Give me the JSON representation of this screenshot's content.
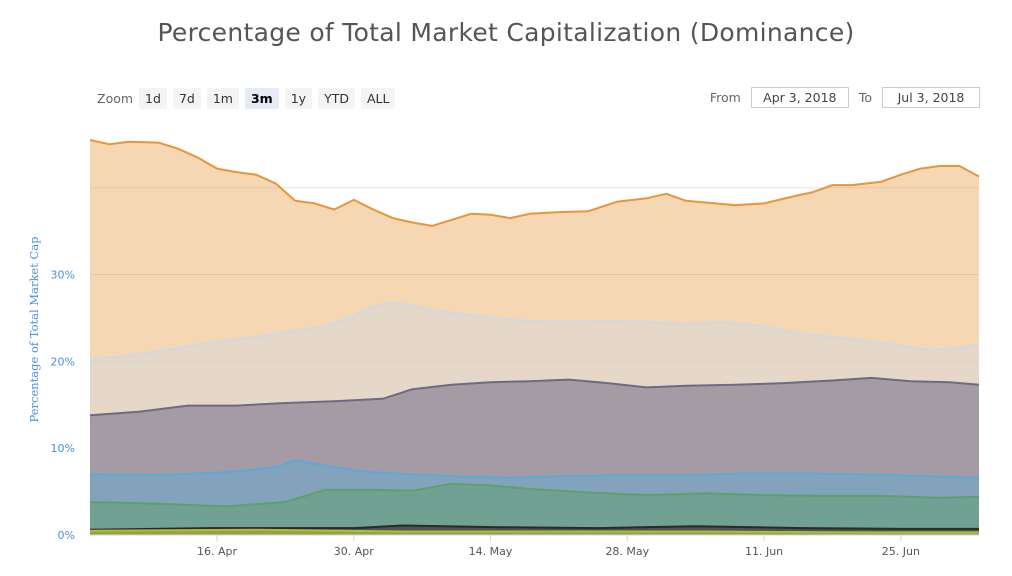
{
  "title": "Percentage of Total Market Capitalization (Dominance)",
  "zoom": {
    "label": "Zoom",
    "buttons": [
      "1d",
      "7d",
      "1m",
      "3m",
      "1y",
      "YTD",
      "ALL"
    ],
    "active": "3m"
  },
  "range": {
    "from_label": "From",
    "from_value": "Apr 3, 2018",
    "to_label": "To",
    "to_value": "Jul 3, 2018"
  },
  "colors": {
    "orange": "#e8953a",
    "silver": "#d8d8d8",
    "purple": "#6e6a86",
    "blue": "#5aaad8",
    "green": "#5fa06a",
    "dark": "#2a2a2a",
    "olive": "#b5b838",
    "axis_label": "#4a90d9",
    "grid": "#e6e6e6"
  },
  "chart_data": {
    "type": "area",
    "title": "Percentage of Total Market Capitalization (Dominance)",
    "ylabel": "Percentage of Total Market Cap",
    "ylim": [
      0,
      45.5
    ],
    "yticks": [
      0,
      10,
      20,
      30
    ],
    "ytick_labels": [
      "0%",
      "10%",
      "20%",
      "30%"
    ],
    "x_start": "2018-04-03",
    "x_end": "2018-07-03",
    "xticks": [
      "2018-04-16",
      "2018-04-30",
      "2018-05-14",
      "2018-05-28",
      "2018-06-11",
      "2018-06-25"
    ],
    "xtick_labels": [
      "16. Apr",
      "30. Apr",
      "14. May",
      "28. May",
      "11. Jun",
      "25. Jun"
    ],
    "grid": true,
    "stacked": true,
    "series": [
      {
        "color": "#e8953a",
        "points": [
          [
            "2018-04-03",
            45.5
          ],
          [
            "2018-04-05",
            45
          ],
          [
            "2018-04-07",
            45.3
          ],
          [
            "2018-04-10",
            45.2
          ],
          [
            "2018-04-12",
            44.5
          ],
          [
            "2018-04-14",
            43.5
          ],
          [
            "2018-04-16",
            42.2
          ],
          [
            "2018-04-18",
            41.8
          ],
          [
            "2018-04-20",
            41.5
          ],
          [
            "2018-04-22",
            40.5
          ],
          [
            "2018-04-24",
            38.5
          ],
          [
            "2018-04-26",
            38.2
          ],
          [
            "2018-04-28",
            37.5
          ],
          [
            "2018-04-30",
            38.6
          ],
          [
            "2018-05-02",
            37.5
          ],
          [
            "2018-05-04",
            36.5
          ],
          [
            "2018-05-06",
            36
          ],
          [
            "2018-05-08",
            35.6
          ],
          [
            "2018-05-10",
            36.3
          ],
          [
            "2018-05-12",
            37
          ],
          [
            "2018-05-14",
            36.9
          ],
          [
            "2018-05-16",
            36.5
          ],
          [
            "2018-05-18",
            37
          ],
          [
            "2018-05-21",
            37.2
          ],
          [
            "2018-05-24",
            37.3
          ],
          [
            "2018-05-27",
            38.4
          ],
          [
            "2018-05-30",
            38.8
          ],
          [
            "2018-06-01",
            39.3
          ],
          [
            "2018-06-03",
            38.5
          ],
          [
            "2018-06-05",
            38.3
          ],
          [
            "2018-06-08",
            38
          ],
          [
            "2018-06-11",
            38.2
          ],
          [
            "2018-06-14",
            39
          ],
          [
            "2018-06-16",
            39.5
          ],
          [
            "2018-06-18",
            40.3
          ],
          [
            "2018-06-20",
            40.3
          ],
          [
            "2018-06-23",
            40.7
          ],
          [
            "2018-06-25",
            41.5
          ],
          [
            "2018-06-27",
            42.2
          ],
          [
            "2018-06-29",
            42.5
          ],
          [
            "2018-07-01",
            42.5
          ],
          [
            "2018-07-03",
            41.3
          ]
        ]
      },
      {
        "color": "#d8d8d8",
        "points": [
          [
            "2018-04-03",
            20.3
          ],
          [
            "2018-04-06",
            20.5
          ],
          [
            "2018-04-09",
            21
          ],
          [
            "2018-04-12",
            21.5
          ],
          [
            "2018-04-16",
            22.3
          ],
          [
            "2018-04-20",
            22.8
          ],
          [
            "2018-04-24",
            23.5
          ],
          [
            "2018-04-27",
            24
          ],
          [
            "2018-04-30",
            25.2
          ],
          [
            "2018-05-02",
            26.3
          ],
          [
            "2018-05-04",
            26.8
          ],
          [
            "2018-05-06",
            26.4
          ],
          [
            "2018-05-09",
            25.7
          ],
          [
            "2018-05-12",
            25.3
          ],
          [
            "2018-05-15",
            24.9
          ],
          [
            "2018-05-18",
            24.6
          ],
          [
            "2018-05-22",
            24.5
          ],
          [
            "2018-05-26",
            24.6
          ],
          [
            "2018-05-30",
            24.5
          ],
          [
            "2018-06-03",
            24.3
          ],
          [
            "2018-06-07",
            24.5
          ],
          [
            "2018-06-11",
            24
          ],
          [
            "2018-06-14",
            23.3
          ],
          [
            "2018-06-18",
            22.8
          ],
          [
            "2018-06-22",
            22.3
          ],
          [
            "2018-06-25",
            21.8
          ],
          [
            "2018-06-28",
            21.3
          ],
          [
            "2018-07-01",
            21.5
          ],
          [
            "2018-07-03",
            22
          ]
        ]
      },
      {
        "color": "#6e6a86",
        "points": [
          [
            "2018-04-03",
            13.8
          ],
          [
            "2018-04-08",
            14.2
          ],
          [
            "2018-04-13",
            14.9
          ],
          [
            "2018-04-18",
            14.9
          ],
          [
            "2018-04-23",
            15.2
          ],
          [
            "2018-04-28",
            15.4
          ],
          [
            "2018-05-03",
            15.7
          ],
          [
            "2018-05-06",
            16.8
          ],
          [
            "2018-05-10",
            17.3
          ],
          [
            "2018-05-14",
            17.6
          ],
          [
            "2018-05-18",
            17.7
          ],
          [
            "2018-05-22",
            17.9
          ],
          [
            "2018-05-26",
            17.5
          ],
          [
            "2018-05-30",
            17
          ],
          [
            "2018-06-03",
            17.2
          ],
          [
            "2018-06-08",
            17.3
          ],
          [
            "2018-06-13",
            17.5
          ],
          [
            "2018-06-18",
            17.8
          ],
          [
            "2018-06-22",
            18.1
          ],
          [
            "2018-06-26",
            17.7
          ],
          [
            "2018-06-30",
            17.6
          ],
          [
            "2018-07-03",
            17.3
          ]
        ]
      },
      {
        "color": "#5aaad8",
        "points": [
          [
            "2018-04-03",
            7
          ],
          [
            "2018-04-10",
            6.9
          ],
          [
            "2018-04-18",
            7.3
          ],
          [
            "2018-04-22",
            7.8
          ],
          [
            "2018-04-24",
            8.6
          ],
          [
            "2018-04-27",
            8
          ],
          [
            "2018-05-01",
            7.3
          ],
          [
            "2018-05-06",
            7
          ],
          [
            "2018-05-11",
            6.7
          ],
          [
            "2018-05-16",
            6.6
          ],
          [
            "2018-05-22",
            6.8
          ],
          [
            "2018-05-28",
            6.9
          ],
          [
            "2018-06-03",
            6.9
          ],
          [
            "2018-06-09",
            7.1
          ],
          [
            "2018-06-15",
            7.1
          ],
          [
            "2018-06-21",
            7
          ],
          [
            "2018-06-27",
            6.8
          ],
          [
            "2018-07-03",
            6.6
          ]
        ]
      },
      {
        "color": "#5fa06a",
        "points": [
          [
            "2018-04-03",
            3.8
          ],
          [
            "2018-04-10",
            3.6
          ],
          [
            "2018-04-17",
            3.3
          ],
          [
            "2018-04-23",
            3.8
          ],
          [
            "2018-04-27",
            5.2
          ],
          [
            "2018-05-02",
            5.2
          ],
          [
            "2018-05-06",
            5.1
          ],
          [
            "2018-05-10",
            5.9
          ],
          [
            "2018-05-14",
            5.7
          ],
          [
            "2018-05-18",
            5.3
          ],
          [
            "2018-05-24",
            4.9
          ],
          [
            "2018-05-30",
            4.6
          ],
          [
            "2018-06-05",
            4.8
          ],
          [
            "2018-06-11",
            4.6
          ],
          [
            "2018-06-17",
            4.5
          ],
          [
            "2018-06-23",
            4.5
          ],
          [
            "2018-06-29",
            4.3
          ],
          [
            "2018-07-03",
            4.4
          ]
        ]
      },
      {
        "color": "#2a2a2a",
        "points": [
          [
            "2018-04-03",
            0.6
          ],
          [
            "2018-04-15",
            0.8
          ],
          [
            "2018-04-30",
            0.8
          ],
          [
            "2018-05-05",
            1.1
          ],
          [
            "2018-05-15",
            0.9
          ],
          [
            "2018-05-25",
            0.8
          ],
          [
            "2018-06-04",
            1
          ],
          [
            "2018-06-15",
            0.8
          ],
          [
            "2018-06-25",
            0.7
          ],
          [
            "2018-07-03",
            0.7
          ]
        ]
      },
      {
        "color": "#b5b838",
        "points": [
          [
            "2018-04-03",
            0.5
          ],
          [
            "2018-04-20",
            0.6
          ],
          [
            "2018-05-05",
            0.4
          ],
          [
            "2018-05-20",
            0.4
          ],
          [
            "2018-06-05",
            0.4
          ],
          [
            "2018-06-20",
            0.3
          ],
          [
            "2018-07-03",
            0.3
          ]
        ]
      }
    ]
  }
}
